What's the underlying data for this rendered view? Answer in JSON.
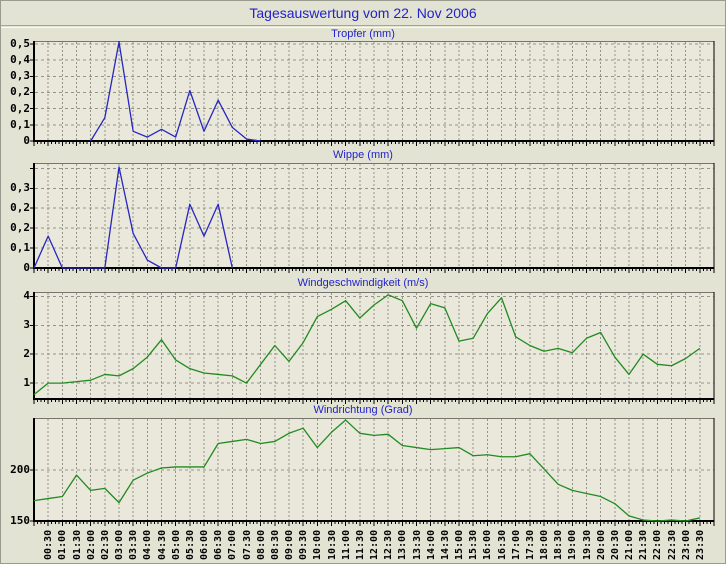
{
  "page": {
    "title": "Tagesauswertung vom 22. Nov 2006"
  },
  "colors": {
    "page_bg": "#e3e3d4",
    "plot_bg": "#eae8da",
    "grid": "#93938a",
    "axis": "#000000",
    "title_blue": "#2222cc",
    "line_blue": "#2727c0",
    "line_green": "#218a21"
  },
  "time_axis": {
    "tick_labels": [
      "00:30",
      "01:00",
      "01:30",
      "02:00",
      "02:30",
      "03:00",
      "03:30",
      "04:00",
      "04:30",
      "05:00",
      "05:30",
      "06:00",
      "06:30",
      "07:00",
      "07:30",
      "08:00",
      "08:30",
      "09:00",
      "09:30",
      "10:00",
      "10:30",
      "11:00",
      "11:30",
      "12:00",
      "12:30",
      "13:00",
      "13:30",
      "14:00",
      "14:30",
      "15:00",
      "15:30",
      "16:00",
      "16:30",
      "17:00",
      "17:30",
      "18:00",
      "18:30",
      "19:00",
      "19:30",
      "20:00",
      "20:30",
      "21:00",
      "21:30",
      "22:00",
      "22:30",
      "23:00",
      "23:30"
    ],
    "intervals": 48
  },
  "chart_data": [
    {
      "type": "line",
      "title": "Tropfer (mm)",
      "color": "line_blue",
      "ymin": 0,
      "ymax": 0.515,
      "grids": [
        {
          "v": 0.5,
          "label": "0,5"
        },
        {
          "v": 0.4167,
          "label": "0,4"
        },
        {
          "v": 0.3333,
          "label": "0,3"
        },
        {
          "v": 0.25,
          "label": "0,2"
        },
        {
          "v": 0.1667,
          "label": "0,2"
        },
        {
          "v": 0.0833,
          "label": "0,1"
        },
        {
          "v": 0,
          "label": "0"
        }
      ],
      "x_start": "02:00",
      "x_step_minutes": 30,
      "start_interval": 4,
      "values": [
        0,
        0.12,
        0.51,
        0.05,
        0.02,
        0.06,
        0.02,
        0.26,
        0.05,
        0.21,
        0.07,
        0.01,
        0
      ]
    },
    {
      "type": "line",
      "title": "Wippe (mm)",
      "color": "line_blue",
      "ymin": 0,
      "ymax": 0.395,
      "grids": [
        {
          "v": 0.375,
          "label": ""
        },
        {
          "v": 0.3,
          "label": "0,3"
        },
        {
          "v": 0.225,
          "label": "0,2"
        },
        {
          "v": 0.15,
          "label": "0,2"
        },
        {
          "v": 0.075,
          "label": "0,1"
        },
        {
          "v": 0,
          "label": "0"
        }
      ],
      "x_start": "00:00",
      "x_step_minutes": 30,
      "start_interval": 0,
      "values": [
        0,
        0.12,
        0,
        0,
        0,
        0,
        0.38,
        0.13,
        0.03,
        0,
        0,
        0.24,
        0.12,
        0.24,
        0
      ]
    },
    {
      "type": "line",
      "title": "Windgeschwindigkeit (m/s)",
      "color": "line_green",
      "ymin": 0.45,
      "ymax": 4.15,
      "grids": [
        {
          "v": 4,
          "label": "4"
        },
        {
          "v": 3,
          "label": "3"
        },
        {
          "v": 2,
          "label": "2"
        },
        {
          "v": 1,
          "label": "1"
        }
      ],
      "x_start": "00:00",
      "x_step_minutes": 30,
      "start_interval": 0,
      "values": [
        0.6,
        1.0,
        1.0,
        1.05,
        1.1,
        1.3,
        1.25,
        1.5,
        1.9,
        2.5,
        1.8,
        1.5,
        1.35,
        1.3,
        1.25,
        1.0,
        1.65,
        2.3,
        1.75,
        2.4,
        3.3,
        3.55,
        3.85,
        3.25,
        3.7,
        4.05,
        3.85,
        2.9,
        3.75,
        3.6,
        2.45,
        2.55,
        3.4,
        3.95,
        2.6,
        2.3,
        2.1,
        2.2,
        2.05,
        2.55,
        2.75,
        1.9,
        1.3,
        2.0,
        1.65,
        1.6,
        1.85,
        2.2
      ]
    },
    {
      "type": "line",
      "title": "Windrichtung (Grad)",
      "color": "line_green",
      "ymin": 150,
      "ymax": 251,
      "grids": [
        {
          "v": 200,
          "label": "200"
        },
        {
          "v": 150,
          "label": "150"
        }
      ],
      "x_start": "00:00",
      "x_step_minutes": 30,
      "start_interval": 0,
      "values": [
        170,
        172,
        174,
        195,
        180,
        182,
        168,
        190,
        197,
        202,
        203,
        203,
        203,
        226,
        228,
        230,
        226,
        228,
        236,
        241,
        222,
        237,
        249,
        236,
        234,
        235,
        224,
        222,
        220,
        221,
        222,
        214,
        215,
        213,
        213,
        216,
        201,
        186,
        180,
        177,
        174,
        167,
        155,
        151,
        150,
        151,
        150,
        153
      ]
    }
  ]
}
